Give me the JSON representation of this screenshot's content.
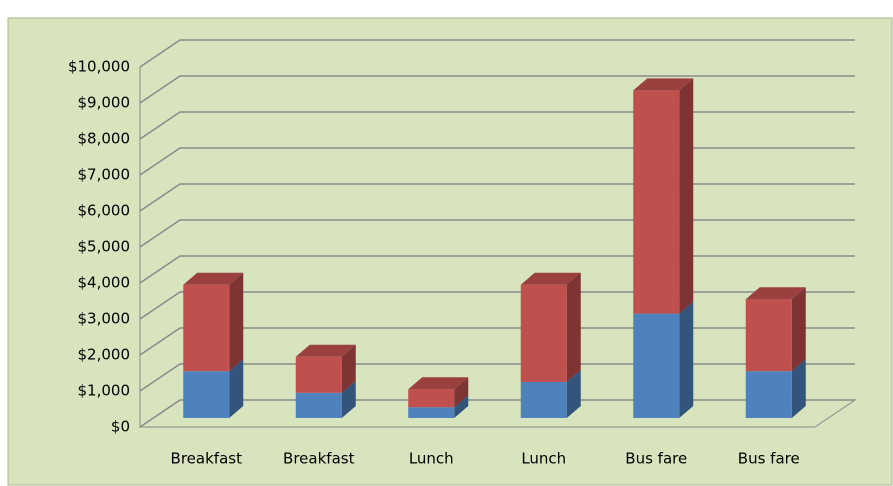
{
  "chart_data": {
    "type": "bar",
    "stacked": true,
    "categories": [
      "Breakfast",
      "Breakfast",
      "Lunch",
      "Lunch",
      "Bus fare",
      "Bus fare"
    ],
    "series": [
      {
        "color": "#4f81bd",
        "values": [
          1300,
          700,
          300,
          1000,
          2900,
          1300
        ]
      },
      {
        "color": "#c0504d",
        "values": [
          2400,
          1000,
          500,
          2700,
          6200,
          2000
        ]
      }
    ],
    "ylim": [
      0,
      10000
    ],
    "yticks": [
      {
        "value": 0,
        "label": "$0"
      },
      {
        "value": 1000,
        "label": "$1,000"
      },
      {
        "value": 2000,
        "label": "$2,000"
      },
      {
        "value": 3000,
        "label": "$3,000"
      },
      {
        "value": 4000,
        "label": "$4,000"
      },
      {
        "value": 5000,
        "label": "$5,000"
      },
      {
        "value": 6000,
        "label": "$6,000"
      },
      {
        "value": 7000,
        "label": "$7,000"
      },
      {
        "value": 8000,
        "label": "$8,000"
      },
      {
        "value": 9000,
        "label": "$9,000"
      },
      {
        "value": 10000,
        "label": "$10,000"
      }
    ],
    "grid": true
  }
}
